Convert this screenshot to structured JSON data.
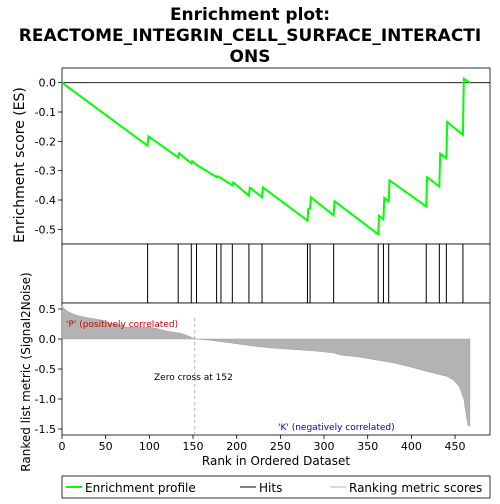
{
  "chart_data": {
    "type": "line",
    "title_line1": "Enrichment plot:",
    "title_line2": "REACTOME_INTEGRIN_CELL_SURFACE_INTERACTI",
    "title_line3": "ONS",
    "es_panel": {
      "ylabel": "Enrichment score (ES)",
      "ylim": [
        -0.55,
        0.05
      ],
      "xlim": [
        0,
        490
      ],
      "yticks": [
        "0.0",
        "-0.1",
        "-0.2",
        "-0.3",
        "-0.4",
        "-0.5"
      ],
      "ytick_values": [
        0.0,
        -0.1,
        -0.2,
        -0.3,
        -0.4,
        -0.5
      ],
      "series_color": "#00ff00",
      "profile": [
        [
          0,
          0.0
        ],
        [
          98,
          -0.215
        ],
        [
          99,
          -0.183
        ],
        [
          133,
          -0.255
        ],
        [
          134,
          -0.24
        ],
        [
          148,
          -0.275
        ],
        [
          149,
          -0.268
        ],
        [
          154,
          -0.28
        ],
        [
          177,
          -0.322
        ],
        [
          178,
          -0.319
        ],
        [
          182,
          -0.325
        ],
        [
          195,
          -0.35
        ],
        [
          196,
          -0.34
        ],
        [
          214,
          -0.385
        ],
        [
          215,
          -0.358
        ],
        [
          229,
          -0.39
        ],
        [
          230,
          -0.357
        ],
        [
          281,
          -0.47
        ],
        [
          282,
          -0.43
        ],
        [
          284,
          -0.428
        ],
        [
          285,
          -0.391
        ],
        [
          311,
          -0.452
        ],
        [
          312,
          -0.404
        ],
        [
          362,
          -0.517
        ],
        [
          363,
          -0.454
        ],
        [
          368,
          -0.466
        ],
        [
          369,
          -0.393
        ],
        [
          374,
          -0.405
        ],
        [
          375,
          -0.333
        ],
        [
          417,
          -0.422
        ],
        [
          418,
          -0.322
        ],
        [
          432,
          -0.354
        ],
        [
          433,
          -0.242
        ],
        [
          440,
          -0.258
        ],
        [
          441,
          -0.134
        ],
        [
          459,
          -0.178
        ],
        [
          460,
          0.013
        ],
        [
          467,
          0.0
        ]
      ]
    },
    "hits_panel": {
      "hit_color": "#000000",
      "hits": [
        98,
        133,
        148,
        154,
        177,
        182,
        195,
        214,
        229,
        281,
        284,
        311,
        362,
        368,
        374,
        417,
        432,
        440,
        459
      ]
    },
    "rank_panel": {
      "ylabel": "Ranked list metric (Signal2Noise)",
      "xlabel": "Rank in Ordered Dataset",
      "xticks": [
        "0",
        "50",
        "100",
        "150",
        "200",
        "250",
        "300",
        "350",
        "400",
        "450"
      ],
      "xtick_values": [
        0,
        50,
        100,
        150,
        200,
        250,
        300,
        350,
        400,
        450
      ],
      "yticks": [
        "0.5",
        "0.0",
        "-0.5",
        "-1.0",
        "-1.5"
      ],
      "ytick_values": [
        0.5,
        0.0,
        -0.5,
        -1.0,
        -1.5
      ],
      "ylim": [
        -1.6,
        0.6
      ],
      "xlim": [
        0,
        490
      ],
      "pos_label": "'P' (positively correlated)",
      "neg_label": "'K' (negatively correlated)",
      "zero_cross_label": "Zero cross at 152",
      "zero_cross": 152,
      "fill_color": "#b3b3b3",
      "metric_points": [
        [
          0,
          0.55
        ],
        [
          3,
          0.5
        ],
        [
          8,
          0.45
        ],
        [
          12,
          0.42
        ],
        [
          20,
          0.38
        ],
        [
          40,
          0.33
        ],
        [
          50,
          0.3
        ],
        [
          55,
          0.26
        ],
        [
          70,
          0.23
        ],
        [
          72,
          0.2
        ],
        [
          100,
          0.2
        ],
        [
          110,
          0.17
        ],
        [
          120,
          0.13
        ],
        [
          135,
          0.1
        ],
        [
          145,
          0.05
        ],
        [
          152,
          0.0
        ],
        [
          170,
          -0.02
        ],
        [
          200,
          -0.08
        ],
        [
          220,
          -0.12
        ],
        [
          240,
          -0.15
        ],
        [
          260,
          -0.17
        ],
        [
          290,
          -0.2
        ],
        [
          310,
          -0.23
        ],
        [
          320,
          -0.27
        ],
        [
          340,
          -0.3
        ],
        [
          360,
          -0.35
        ],
        [
          380,
          -0.4
        ],
        [
          400,
          -0.47
        ],
        [
          420,
          -0.55
        ],
        [
          440,
          -0.62
        ],
        [
          448,
          -0.68
        ],
        [
          455,
          -0.8
        ],
        [
          460,
          -1.0
        ],
        [
          463,
          -1.3
        ],
        [
          465,
          -1.45
        ],
        [
          467,
          -1.45
        ]
      ]
    },
    "legend": [
      {
        "label": "Enrichment profile",
        "color": "#00ff00",
        "kind": "line-thick"
      },
      {
        "label": "Hits",
        "color": "#000000",
        "kind": "line"
      },
      {
        "label": "Ranking metric scores",
        "color": "#b3b3b3",
        "kind": "line"
      }
    ],
    "colorbar_segments": [
      {
        "from": 0,
        "to": 20,
        "color": "#ff1a1a"
      },
      {
        "from": 20,
        "to": 70,
        "color": "#ff5050"
      },
      {
        "from": 70,
        "to": 140,
        "color": "#ff8080"
      },
      {
        "from": 140,
        "to": 180,
        "color": "#ffc0d0"
      },
      {
        "from": 180,
        "to": 225,
        "color": "#d8d8f8"
      },
      {
        "from": 225,
        "to": 290,
        "color": "#c8c8f8"
      },
      {
        "from": 290,
        "to": 335,
        "color": "#8080ff"
      },
      {
        "from": 335,
        "to": 432,
        "color": "#5050ff"
      },
      {
        "from": 432,
        "to": 467,
        "color": "#1010d0"
      }
    ]
  }
}
